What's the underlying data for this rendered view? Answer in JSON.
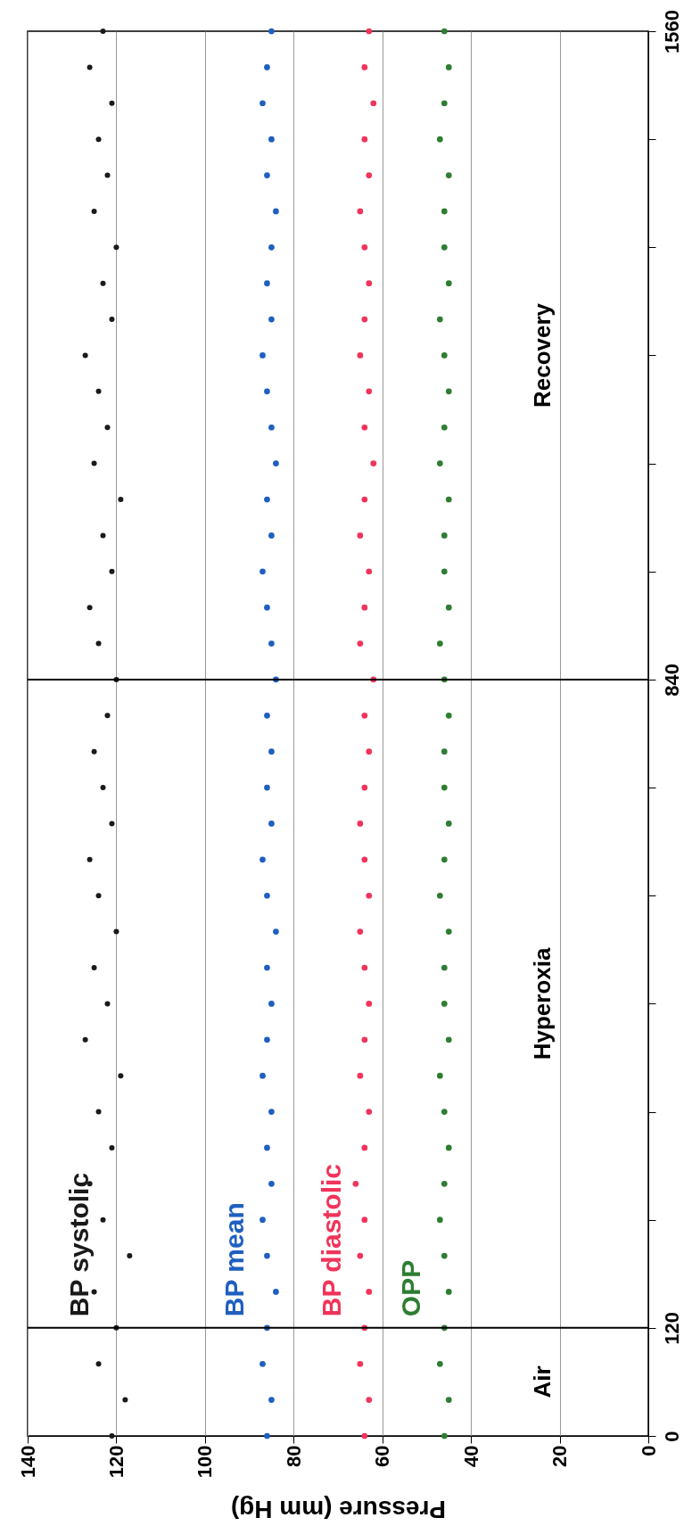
{
  "chart_data": {
    "type": "scatter",
    "xlabel": "Pressure (mm Hg)",
    "xlim": [
      140,
      0
    ],
    "ylim": [
      0,
      1560
    ],
    "xticks": [
      140,
      120,
      100,
      80,
      60,
      40,
      20,
      0
    ],
    "yticks": [
      0,
      120,
      {
        "value": 240,
        "label": null
      },
      {
        "value": 360,
        "label": null
      },
      {
        "value": 480,
        "label": null
      },
      {
        "value": 600,
        "label": null
      },
      {
        "value": 720,
        "label": null
      },
      840,
      {
        "value": 960,
        "label": null
      },
      {
        "value": 1080,
        "label": null
      },
      {
        "value": 1200,
        "label": null
      },
      {
        "value": 1320,
        "label": null
      },
      {
        "value": 1440,
        "label": null
      },
      1560
    ],
    "grid": "x",
    "marker": "circle",
    "series": [
      {
        "name": "BP systolic",
        "color": "#1a1a1a",
        "x": [
          121,
          118,
          124,
          120,
          125,
          117,
          123,
          126,
          121,
          124,
          119,
          127,
          122,
          125,
          120,
          124,
          126,
          121,
          123,
          125,
          122,
          120,
          124,
          126,
          121,
          123,
          119,
          125,
          122,
          124,
          127,
          121,
          123,
          120,
          125,
          122,
          124,
          121,
          126,
          123
        ],
        "values": [
          0,
          40,
          80,
          120,
          160,
          200,
          240,
          280,
          320,
          360,
          400,
          440,
          480,
          520,
          560,
          600,
          640,
          680,
          720,
          760,
          800,
          840,
          880,
          920,
          960,
          1000,
          1040,
          1080,
          1120,
          1160,
          1200,
          1240,
          1280,
          1320,
          1360,
          1400,
          1440,
          1480,
          1520,
          1560
        ]
      },
      {
        "name": "BP mean",
        "color": "#1f5fbf",
        "x": [
          86,
          85,
          87,
          86,
          84,
          86,
          87,
          85,
          86,
          85,
          87,
          86,
          85,
          86,
          84,
          86,
          87,
          85,
          86,
          85,
          86,
          84,
          85,
          86,
          87,
          85,
          86,
          84,
          85,
          86,
          87,
          85,
          86,
          85,
          84,
          86,
          85,
          87,
          86,
          85
        ],
        "values": [
          0,
          40,
          80,
          120,
          160,
          200,
          240,
          280,
          320,
          360,
          400,
          440,
          480,
          520,
          560,
          600,
          640,
          680,
          720,
          760,
          800,
          840,
          880,
          920,
          960,
          1000,
          1040,
          1080,
          1120,
          1160,
          1200,
          1240,
          1280,
          1320,
          1360,
          1400,
          1440,
          1480,
          1520,
          1560
        ]
      },
      {
        "name": "BP diastolic",
        "color": "#f0345a",
        "x": [
          64,
          63,
          65,
          64,
          63,
          65,
          64,
          66,
          64,
          63,
          65,
          64,
          63,
          64,
          65,
          63,
          64,
          65,
          64,
          63,
          64,
          62,
          65,
          64,
          63,
          65,
          64,
          62,
          64,
          63,
          65,
          64,
          63,
          64,
          65,
          63,
          64,
          62,
          64,
          63
        ],
        "values": [
          0,
          40,
          80,
          120,
          160,
          200,
          240,
          280,
          320,
          360,
          400,
          440,
          480,
          520,
          560,
          600,
          640,
          680,
          720,
          760,
          800,
          840,
          880,
          920,
          960,
          1000,
          1040,
          1080,
          1120,
          1160,
          1200,
          1240,
          1280,
          1320,
          1360,
          1400,
          1440,
          1480,
          1520,
          1560
        ]
      },
      {
        "name": "OPP",
        "color": "#2e7d32",
        "x": [
          46,
          45,
          47,
          46,
          45,
          46,
          47,
          46,
          45,
          46,
          47,
          45,
          46,
          46,
          45,
          47,
          46,
          45,
          46,
          46,
          45,
          46,
          47,
          45,
          46,
          46,
          45,
          47,
          46,
          45,
          46,
          47,
          45,
          46,
          46,
          45,
          47,
          46,
          45,
          46
        ],
        "values": [
          0,
          40,
          80,
          120,
          160,
          200,
          240,
          280,
          320,
          360,
          400,
          440,
          480,
          520,
          560,
          600,
          640,
          680,
          720,
          760,
          800,
          840,
          880,
          920,
          960,
          1000,
          1040,
          1080,
          1120,
          1160,
          1200,
          1240,
          1280,
          1320,
          1360,
          1400,
          1440,
          1480,
          1520,
          1560
        ]
      }
    ],
    "ref_lines": [
      {
        "axis": "y",
        "value": 120,
        "color": "#000000"
      },
      {
        "axis": "y",
        "value": 840,
        "color": "#000000"
      }
    ],
    "annotations": [
      "Air",
      "Hyperoxia",
      "Recovery"
    ]
  }
}
